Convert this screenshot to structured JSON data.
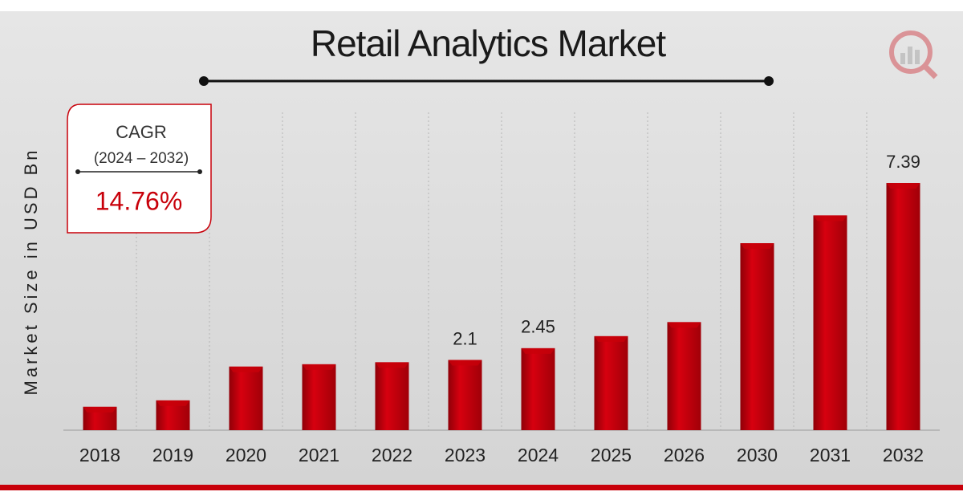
{
  "chart_data": {
    "type": "bar",
    "title": "Retail Analytics Market",
    "y_label": "Market Size in USD Bn",
    "categories": [
      "2018",
      "2019",
      "2020",
      "2021",
      "2022",
      "2023",
      "2024",
      "2025",
      "2026",
      "2030",
      "2031",
      "2032"
    ],
    "values": [
      0.7,
      0.89,
      1.9,
      1.97,
      2.03,
      2.1,
      2.45,
      2.81,
      3.23,
      5.59,
      6.42,
      7.39
    ],
    "value_labels": [
      null,
      null,
      null,
      null,
      null,
      "2.1",
      "2.45",
      null,
      null,
      null,
      null,
      "7.39"
    ],
    "color": "#c8000a",
    "cagr": {
      "label": "CAGR",
      "period": "(2024 – 2032)",
      "value": "14.76%"
    }
  }
}
